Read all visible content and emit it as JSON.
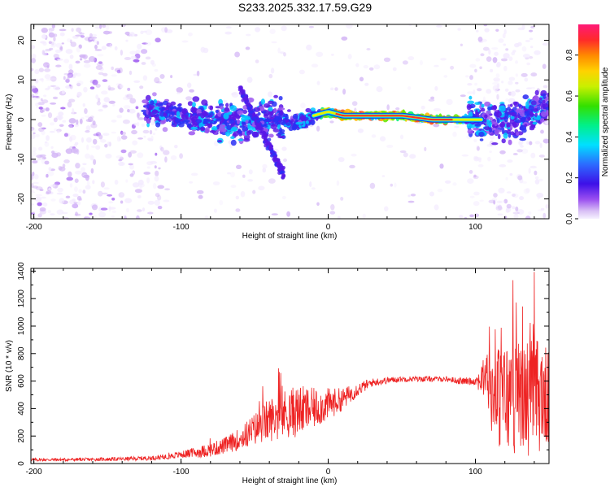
{
  "title": "S233.2025.332.17.59.G29",
  "chart_data": [
    {
      "type": "heatmap",
      "title": "S233.2025.332.17.59.G29",
      "xlabel": "Height of straight line (km)",
      "ylabel": "Frequency (Hz)",
      "xlim": [
        -202,
        150
      ],
      "ylim": [
        -25,
        24
      ],
      "xticks": [
        -200,
        -100,
        0,
        100
      ],
      "yticks": [
        -20,
        -10,
        0,
        10,
        20
      ],
      "colorbar": {
        "label": "Normalized spectral amplitude",
        "range": [
          0,
          0.95
        ],
        "ticks": [
          0.0,
          0.2,
          0.4,
          0.6,
          0.8
        ]
      },
      "ridge": {
        "x": [
          -115,
          -100,
          -80,
          -60,
          -40,
          -30,
          -20,
          -10,
          0,
          10,
          30,
          50,
          70,
          90,
          100,
          110,
          130,
          145
        ],
        "frequency": [
          2,
          1,
          0,
          -1,
          1,
          0,
          -1,
          1,
          2,
          1,
          1,
          1,
          0,
          0,
          0,
          0,
          0,
          3
        ]
      }
    },
    {
      "type": "line",
      "xlabel": "Height of straight line (km)",
      "ylabel": "SNR (10 * v/v)",
      "xlim": [
        -202,
        150
      ],
      "ylim": [
        0,
        1420
      ],
      "xticks": [
        -200,
        -100,
        0,
        100
      ],
      "yticks": [
        0,
        200,
        400,
        600,
        800,
        1000,
        1200,
        1400
      ],
      "series": [
        {
          "name": "SNR",
          "color": "#ee2222",
          "x": [
            -202,
            -180,
            -160,
            -140,
            -120,
            -110,
            -100,
            -90,
            -80,
            -70,
            -60,
            -50,
            -40,
            -30,
            -20,
            -10,
            0,
            10,
            20,
            30,
            40,
            50,
            60,
            70,
            80,
            90,
            100,
            108,
            112,
            120,
            130,
            140,
            150
          ],
          "mean": [
            28,
            28,
            30,
            33,
            40,
            50,
            65,
            80,
            100,
            130,
            180,
            250,
            320,
            360,
            380,
            400,
            430,
            470,
            540,
            590,
            605,
            615,
            615,
            615,
            615,
            600,
            600,
            620,
            500,
            480,
            480,
            500,
            480
          ],
          "noise": [
            12,
            12,
            12,
            14,
            16,
            20,
            25,
            40,
            50,
            60,
            80,
            120,
            160,
            180,
            190,
            150,
            120,
            80,
            50,
            30,
            25,
            20,
            20,
            20,
            20,
            25,
            30,
            200,
            350,
            420,
            420,
            450,
            350
          ]
        }
      ]
    }
  ]
}
